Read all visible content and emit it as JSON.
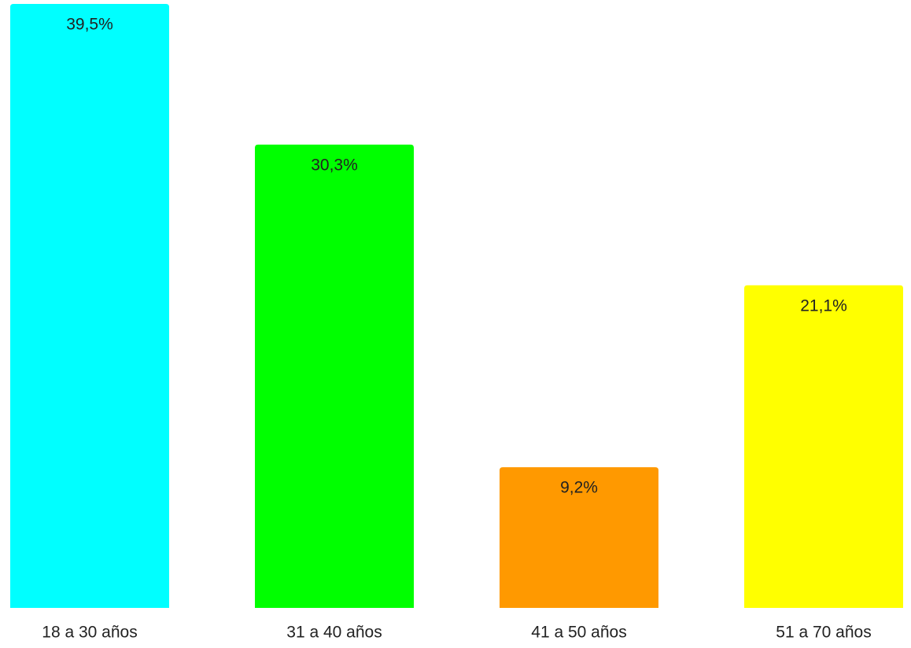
{
  "chart_data": {
    "type": "bar",
    "categories": [
      "18 a 30 años",
      "31 a 40 años",
      "41 a 50 años",
      "51 a 70 años"
    ],
    "values": [
      39.5,
      30.3,
      9.2,
      21.1
    ],
    "value_labels": [
      "39,5%",
      "30,3%",
      "9,2%",
      "21,1%"
    ],
    "colors": [
      "#00ffff",
      "#00ff00",
      "#ff9900",
      "#ffff00"
    ]
  }
}
